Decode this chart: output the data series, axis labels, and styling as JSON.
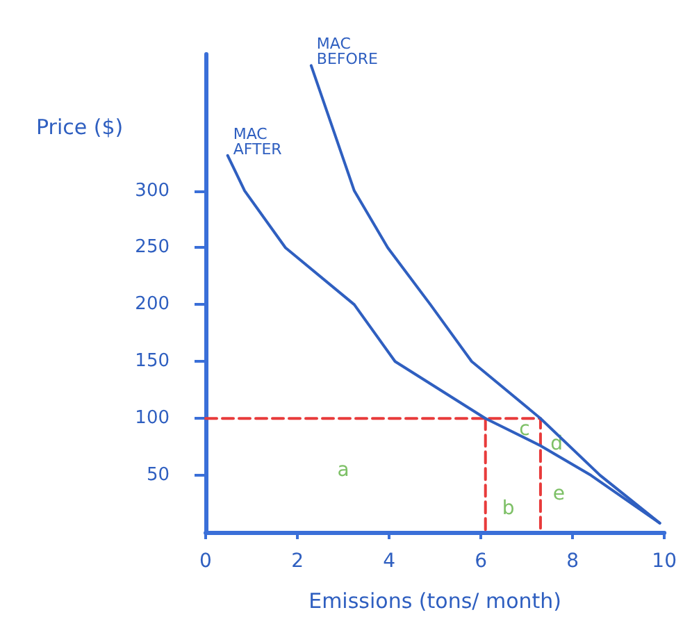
{
  "chart_data": {
    "type": "line",
    "xlabel": "Emissions (tons/ month)",
    "ylabel": "Price ($)",
    "xlim": [
      0,
      10
    ],
    "xticks": [
      0,
      2,
      4,
      6,
      8,
      10
    ],
    "ylim": [
      0,
      420
    ],
    "yticks": [
      50,
      100,
      150,
      200,
      250,
      300
    ],
    "grid": false,
    "legend": false,
    "marker": "none",
    "line_style": "solid",
    "series": [
      {
        "name": "MAC BEFORE",
        "color": "#2f5fc0",
        "x": [
          2.3,
          3.24,
          3.97,
          4.9,
          5.8,
          7.3,
          8.6,
          9.9
        ],
        "values": [
          410,
          300,
          250,
          200,
          150,
          100,
          50,
          8
        ]
      },
      {
        "name": "MAC AFTER",
        "color": "#2f5fc0",
        "x": [
          0.48,
          0.85,
          1.74,
          3.24,
          4.13,
          6.1,
          7.3,
          8.4,
          9.9
        ],
        "values": [
          331,
          300,
          250,
          200,
          150,
          100,
          76,
          50,
          8
        ]
      },
      {
        "color": "#e83b3b",
        "line_style": "dashed",
        "x": [
          0,
          7.3,
          7.3
        ],
        "values": [
          100,
          100,
          0
        ]
      },
      {
        "color": "#e83b3b",
        "line_style": "dashed",
        "x": [
          6.1,
          6.1
        ],
        "values": [
          100,
          0
        ]
      }
    ],
    "annotations": [
      "a",
      "b",
      "c",
      "d",
      "e"
    ]
  }
}
